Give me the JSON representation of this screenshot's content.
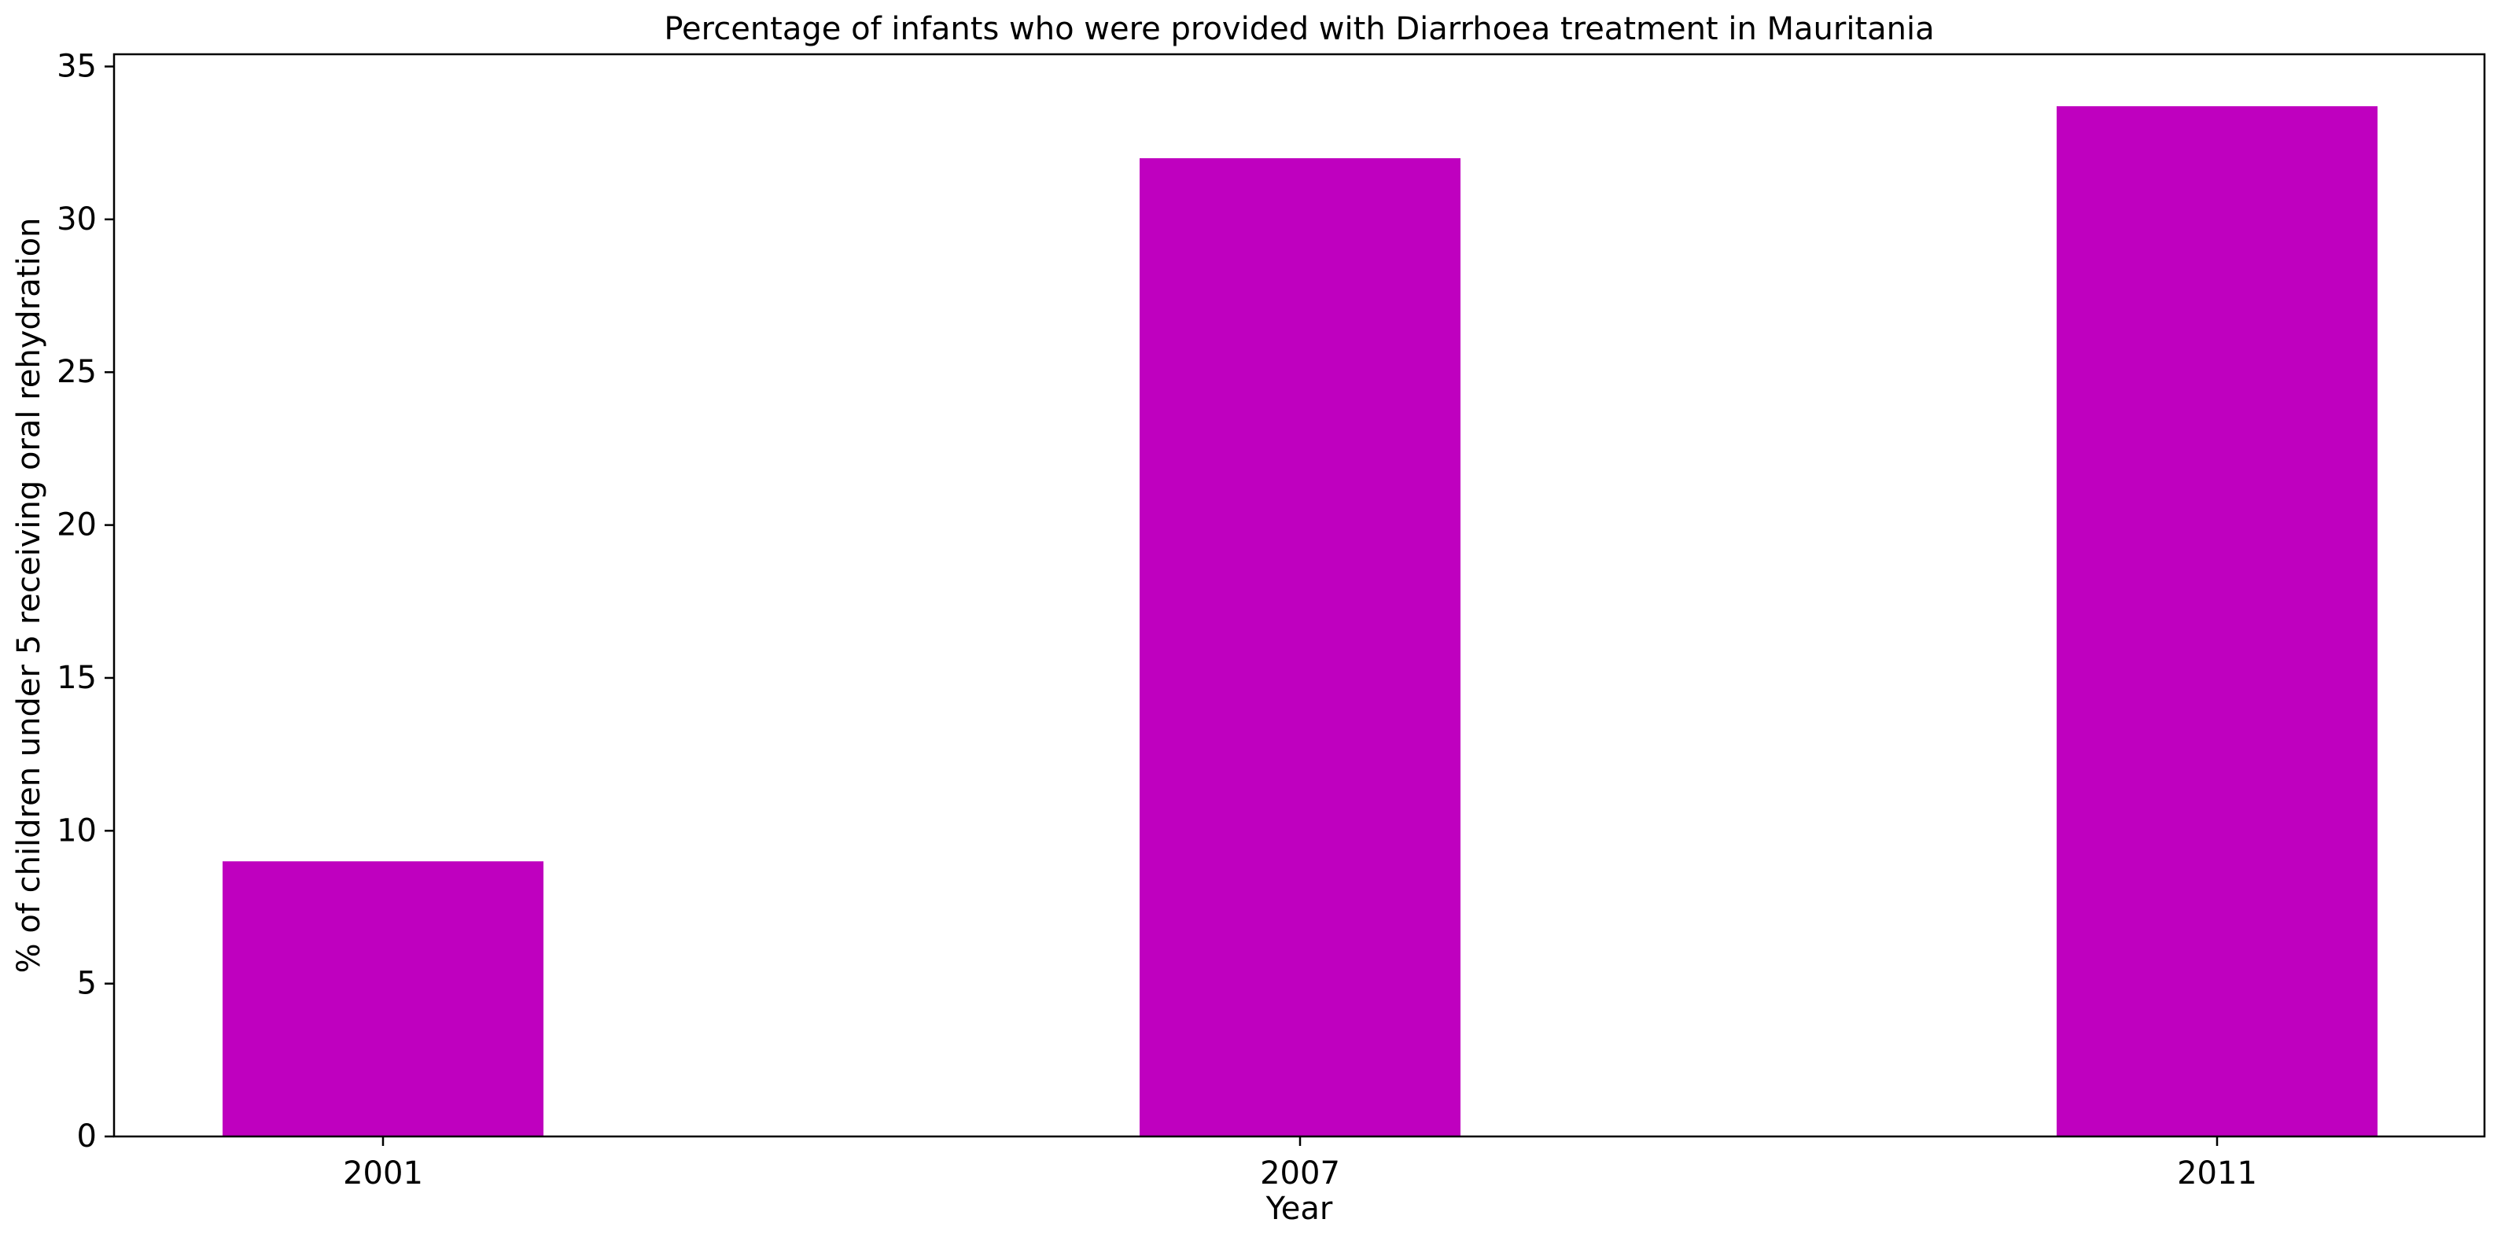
{
  "chart_data": {
    "type": "bar",
    "title": "Percentage of infants who were provided with Diarrhoea treatment in Mauritania",
    "xlabel": "Year",
    "ylabel": "% of children under 5 receiving oral rehydration",
    "categories": [
      "2001",
      "2007",
      "2011"
    ],
    "values": [
      9.0,
      32.0,
      33.7
    ],
    "ylim": [
      0,
      35.4
    ],
    "yticks": [
      0,
      5,
      10,
      15,
      20,
      25,
      30,
      35
    ],
    "bar_color": "#bf00bf",
    "grid": false,
    "legend": false
  }
}
